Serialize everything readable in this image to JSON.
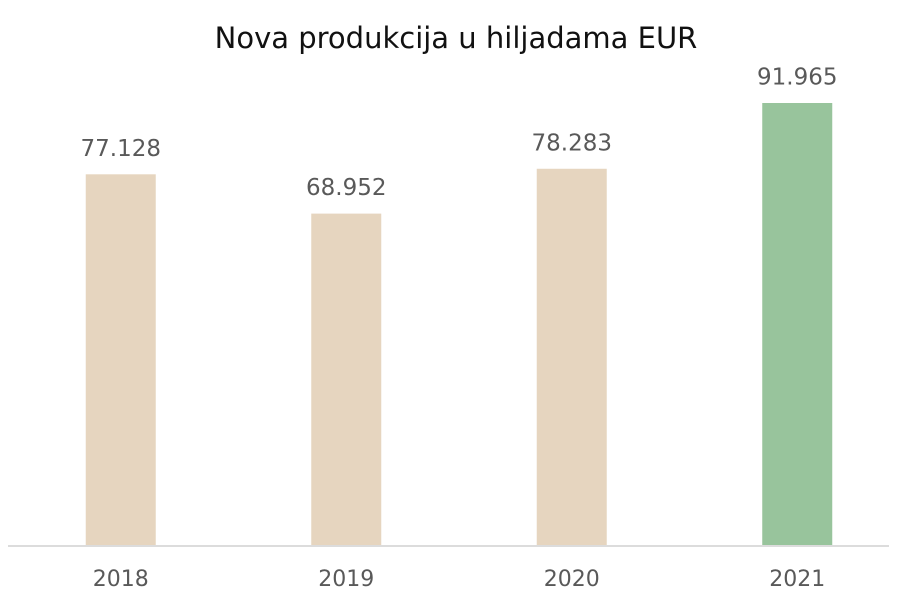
{
  "chart_data": {
    "type": "bar",
    "title": "Nova produkcija u hiljadama EUR",
    "categories": [
      "2018",
      "2019",
      "2020",
      "2021"
    ],
    "values": [
      77128,
      68952,
      78283,
      91965
    ],
    "value_labels": [
      "77.128",
      "68.952",
      "78.283",
      "91.965"
    ],
    "colors": [
      "#e6d5bf",
      "#e6d5bf",
      "#e6d5bf",
      "#98c49c"
    ]
  }
}
